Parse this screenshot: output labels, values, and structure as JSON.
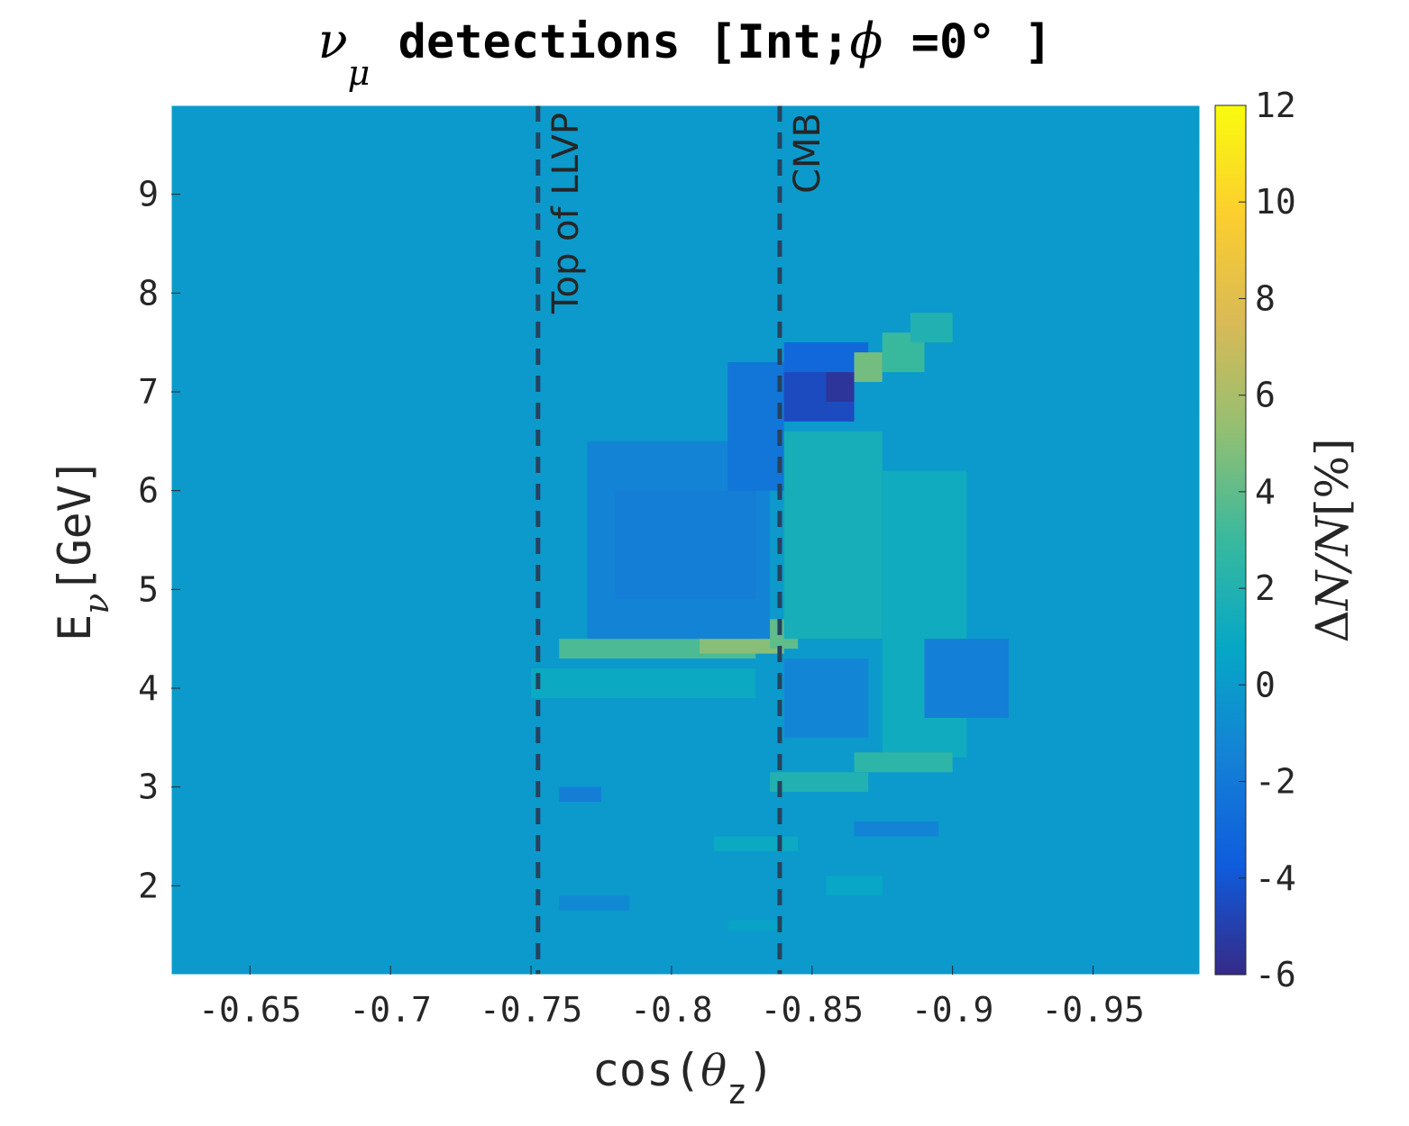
{
  "chart_data": {
    "type": "heatmap",
    "title": {
      "symbol": "ν",
      "symbol_sub": "μ",
      "text": " detections [Int;",
      "phi": "ϕ",
      "suffix": " =0° ]"
    },
    "xlabel": {
      "text": "cos(",
      "theta": "θ",
      "sub": "z",
      "close": ")"
    },
    "ylabel": {
      "text": "E",
      "sub": "ν",
      "unit": "[GeV]"
    },
    "colorbar_label": {
      "delta": "Δ",
      "n": "N/N",
      "pct": "[%]"
    },
    "x_ticks": [
      -0.65,
      -0.7,
      -0.75,
      -0.8,
      -0.85,
      -0.9,
      -0.95
    ],
    "x_tick_labels": [
      "-0.65",
      "-0.7",
      "-0.75",
      "-0.8",
      "-0.85",
      "-0.9",
      "-0.95"
    ],
    "y_ticks": [
      2,
      3,
      4,
      5,
      6,
      7,
      8,
      9
    ],
    "y_tick_labels": [
      "2",
      "3",
      "4",
      "5",
      "6",
      "7",
      "8",
      "9"
    ],
    "colorbar_ticks": [
      -6,
      -4,
      -2,
      0,
      2,
      4,
      6,
      8,
      10,
      12
    ],
    "colorbar_tick_labels": [
      "-6",
      "-4",
      "-2",
      "0",
      "2",
      "4",
      "6",
      "8",
      "10",
      "12"
    ],
    "xlim": [
      -0.622,
      -0.988
    ],
    "ylim": [
      1.1,
      9.9
    ],
    "clim": [
      -6,
      12
    ],
    "colormap": "parula",
    "background_value": 0,
    "vertical_lines": [
      {
        "x": -0.7525,
        "label": "Top of LLVP"
      },
      {
        "x": -0.8385,
        "label": "CMB"
      }
    ],
    "regions": [
      {
        "x": [
          -0.76,
          -0.83
        ],
        "y": [
          4.3,
          4.5
        ],
        "value": 3.5
      },
      {
        "x": [
          -0.81,
          -0.84
        ],
        "y": [
          4.35,
          4.5
        ],
        "value": 5
      },
      {
        "x": [
          -0.835,
          -0.845
        ],
        "y": [
          4.4,
          4.7
        ],
        "value": 4
      },
      {
        "x": [
          -0.84,
          -0.875
        ],
        "y": [
          4.5,
          6.6
        ],
        "value": 1.5
      },
      {
        "x": [
          -0.875,
          -0.905
        ],
        "y": [
          3.3,
          6.2
        ],
        "value": 1.2
      },
      {
        "x": [
          -0.77,
          -0.835
        ],
        "y": [
          4.5,
          6.5
        ],
        "value": -1.3
      },
      {
        "x": [
          -0.78,
          -0.83
        ],
        "y": [
          4.9,
          6.0
        ],
        "value": -1.7
      },
      {
        "x": [
          -0.82,
          -0.84
        ],
        "y": [
          6.0,
          7.3
        ],
        "value": -2.2
      },
      {
        "x": [
          -0.84,
          -0.865
        ],
        "y": [
          6.7,
          7.3
        ],
        "value": -4.5
      },
      {
        "x": [
          -0.855,
          -0.865
        ],
        "y": [
          6.9,
          7.2
        ],
        "value": -5.5
      },
      {
        "x": [
          -0.84,
          -0.87
        ],
        "y": [
          7.2,
          7.5
        ],
        "value": -3
      },
      {
        "x": [
          -0.865,
          -0.875
        ],
        "y": [
          7.1,
          7.4
        ],
        "value": 4.5
      },
      {
        "x": [
          -0.875,
          -0.89
        ],
        "y": [
          7.2,
          7.6
        ],
        "value": 3
      },
      {
        "x": [
          -0.885,
          -0.9
        ],
        "y": [
          7.5,
          7.8
        ],
        "value": 2
      },
      {
        "x": [
          -0.75,
          -0.83
        ],
        "y": [
          3.9,
          4.2
        ],
        "value": 1
      },
      {
        "x": [
          -0.84,
          -0.87
        ],
        "y": [
          3.5,
          4.3
        ],
        "value": -1.2
      },
      {
        "x": [
          -0.89,
          -0.92
        ],
        "y": [
          3.7,
          4.5
        ],
        "value": -1.6
      },
      {
        "x": [
          -0.865,
          -0.9
        ],
        "y": [
          3.15,
          3.35
        ],
        "value": 2.5
      },
      {
        "x": [
          -0.835,
          -0.87
        ],
        "y": [
          2.95,
          3.15
        ],
        "value": 2
      },
      {
        "x": [
          -0.76,
          -0.775
        ],
        "y": [
          2.85,
          3.0
        ],
        "value": -1.7
      },
      {
        "x": [
          -0.865,
          -0.895
        ],
        "y": [
          2.5,
          2.65
        ],
        "value": -1.4
      },
      {
        "x": [
          -0.815,
          -0.845
        ],
        "y": [
          2.35,
          2.5
        ],
        "value": 1
      },
      {
        "x": [
          -0.855,
          -0.875
        ],
        "y": [
          1.9,
          2.1
        ],
        "value": 0.8
      },
      {
        "x": [
          -0.76,
          -0.785
        ],
        "y": [
          1.75,
          1.9
        ],
        "value": -1
      },
      {
        "x": [
          -0.82,
          -0.84
        ],
        "y": [
          1.55,
          1.65
        ],
        "value": 0.6
      }
    ]
  }
}
